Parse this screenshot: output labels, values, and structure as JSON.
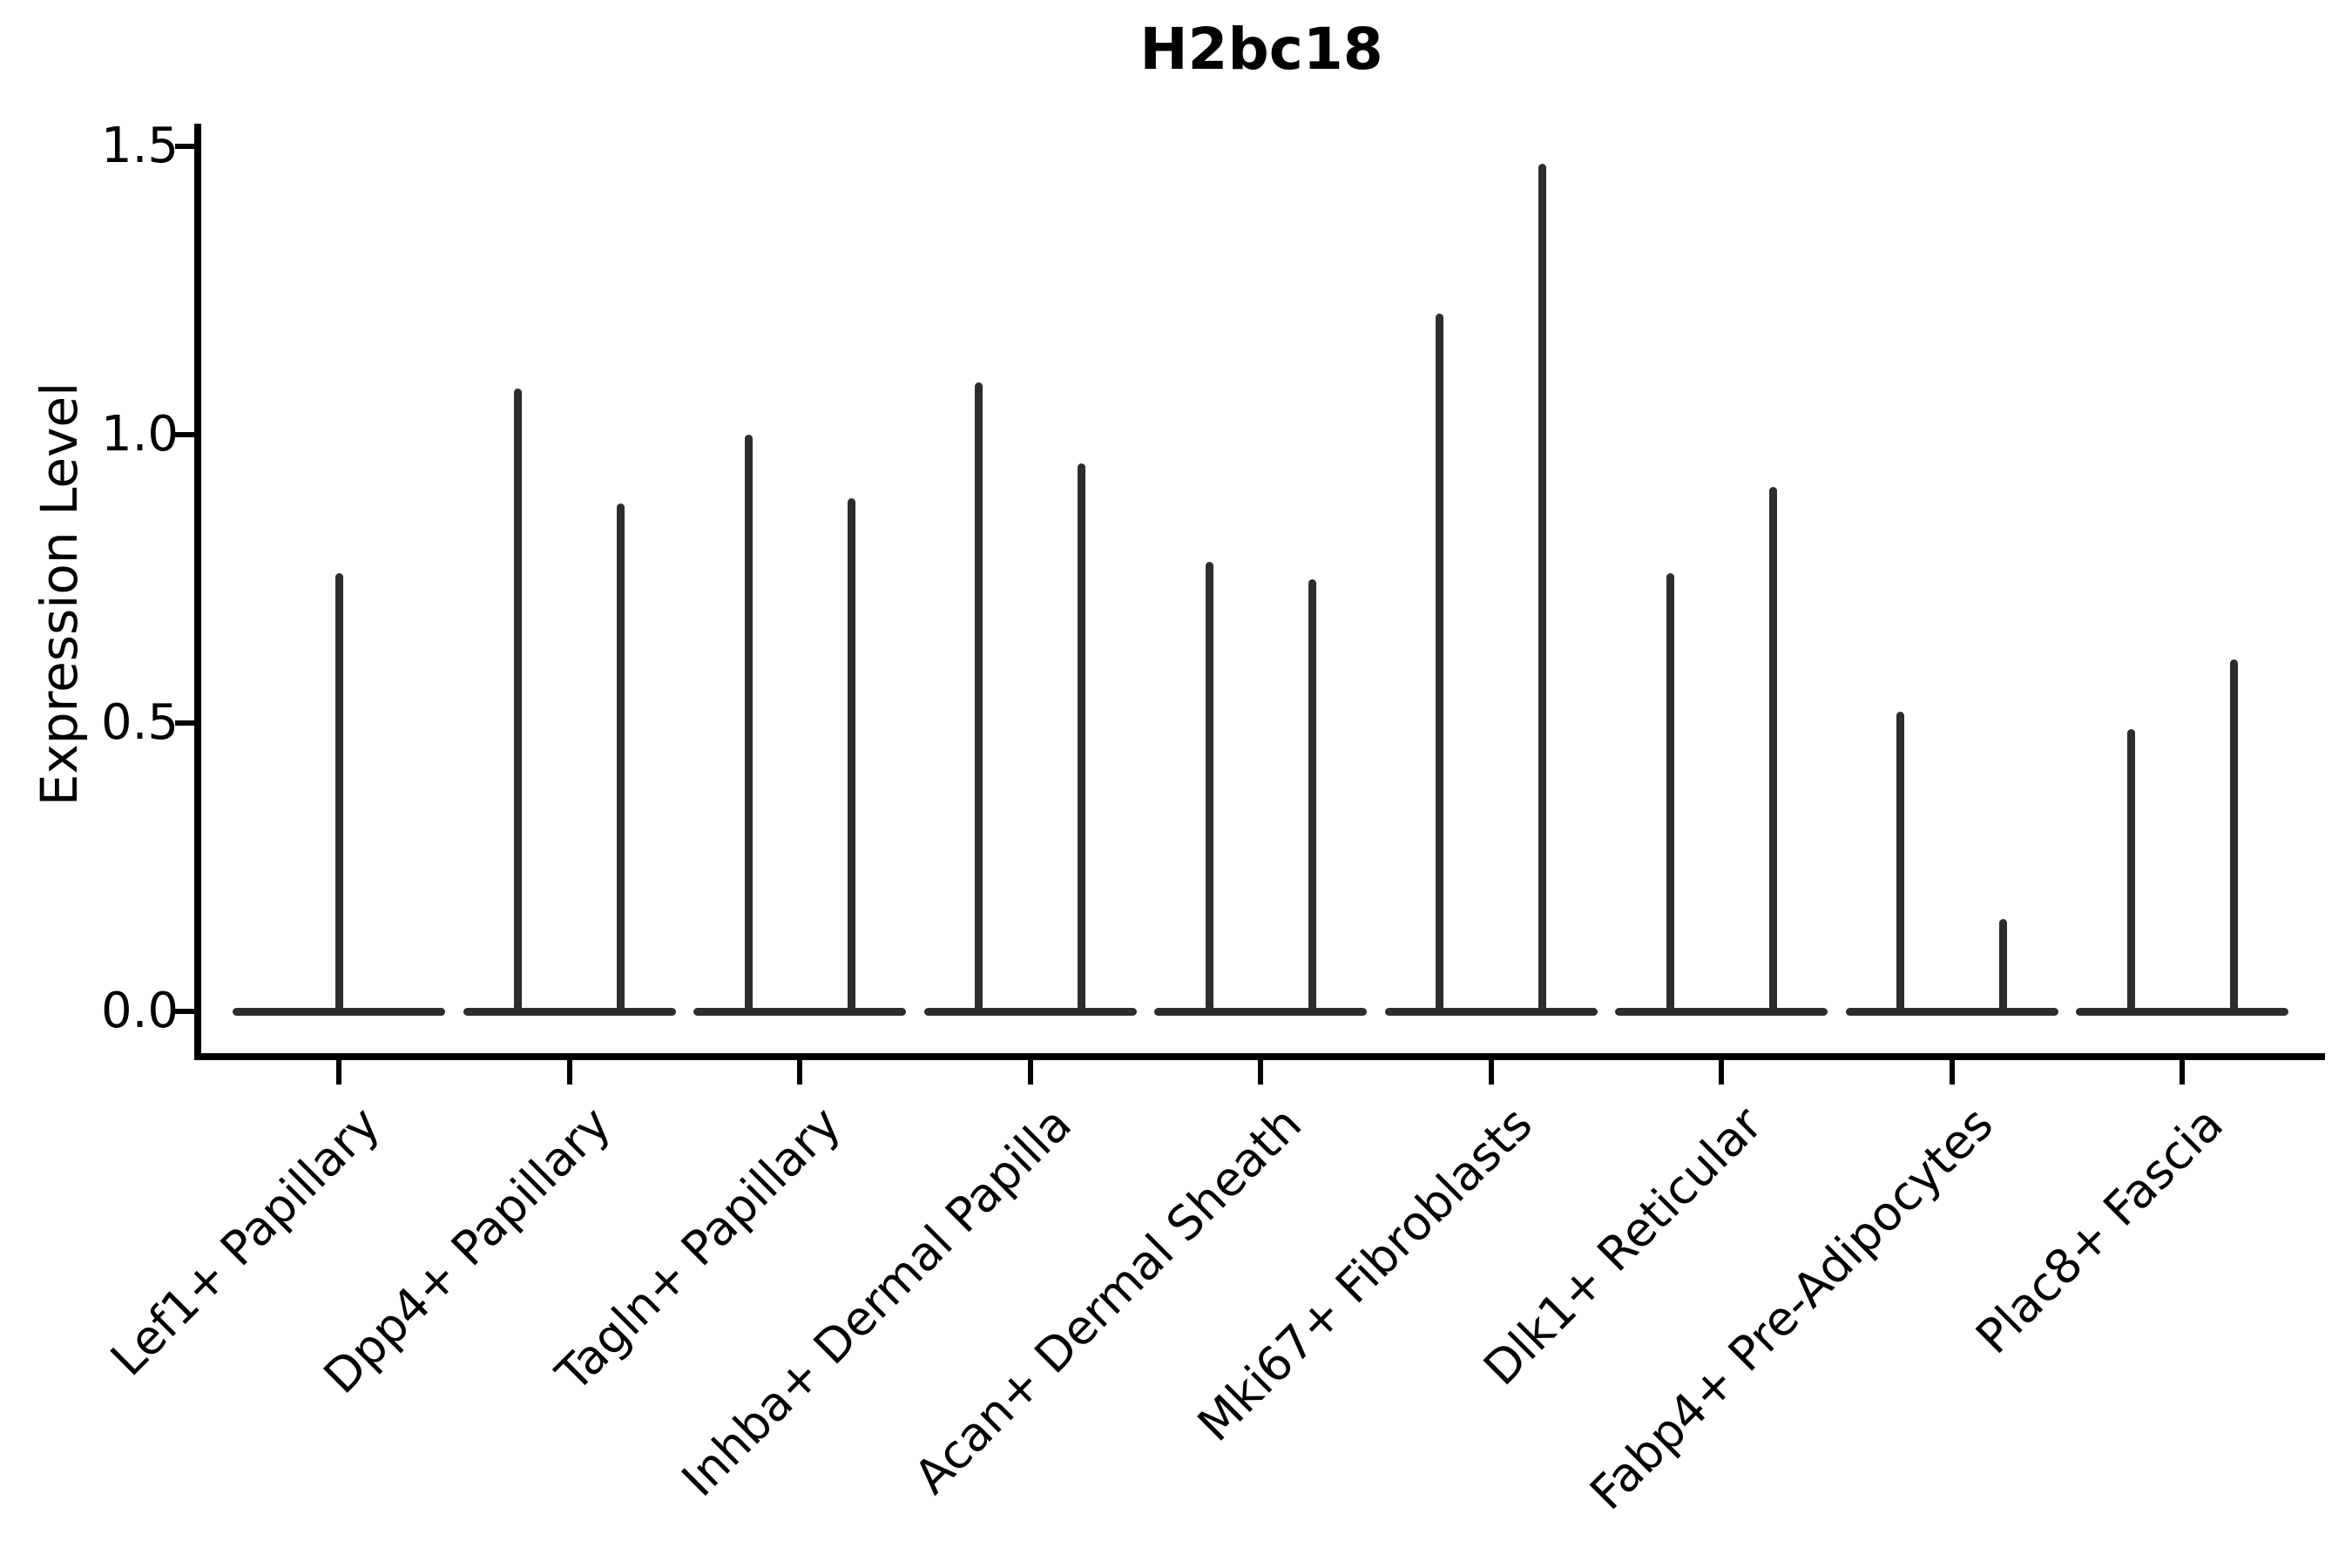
{
  "figure": {
    "title": "H2bc18",
    "accent_color": "#2d2d2d",
    "axis_color": "#000000",
    "background_color": "#ffffff"
  },
  "chart_data": {
    "type": "violin",
    "title": "H2bc18",
    "xlabel": "",
    "ylabel": "Expression Level",
    "ylim": [
      0,
      1.5
    ],
    "yticks": [
      "0.0",
      "0.5",
      "1.0",
      "1.5"
    ],
    "ytick_values": [
      0.0,
      0.5,
      1.0,
      1.5
    ],
    "grid": false,
    "legend": "none",
    "categories": [
      "Lef1+ Papillary",
      "Dpp4+ Papillary",
      "Tagln+ Papillary",
      "Inhba+ Dermal Papilla",
      "Acan+ Dermal Sheath",
      "Mki67+ Fibroblasts",
      "Dlk1+ Reticular",
      "Fabp4+ Pre-Adipocytes",
      "Plac8+ Fascia"
    ],
    "series": [
      {
        "category": "Lef1+ Papillary",
        "violin_max_values": [
          0.76
        ]
      },
      {
        "category": "Dpp4+ Papillary",
        "violin_max_values": [
          1.08,
          0.88
        ]
      },
      {
        "category": "Tagln+ Papillary",
        "violin_max_values": [
          1.0,
          0.89
        ]
      },
      {
        "category": "Inhba+ Dermal Papilla",
        "violin_max_values": [
          1.09,
          0.95
        ]
      },
      {
        "category": "Acan+ Dermal Sheath",
        "violin_max_values": [
          0.78,
          0.75
        ]
      },
      {
        "category": "Mki67+ Fibroblasts",
        "violin_max_values": [
          1.21,
          1.47
        ]
      },
      {
        "category": "Dlk1+ Reticular",
        "violin_max_values": [
          0.76,
          0.91
        ]
      },
      {
        "category": "Fabp4+ Pre-Adipocytes",
        "violin_max_values": [
          0.52,
          0.16
        ]
      },
      {
        "category": "Plac8+ Fascia",
        "violin_max_values": [
          0.49,
          0.61
        ]
      }
    ]
  }
}
